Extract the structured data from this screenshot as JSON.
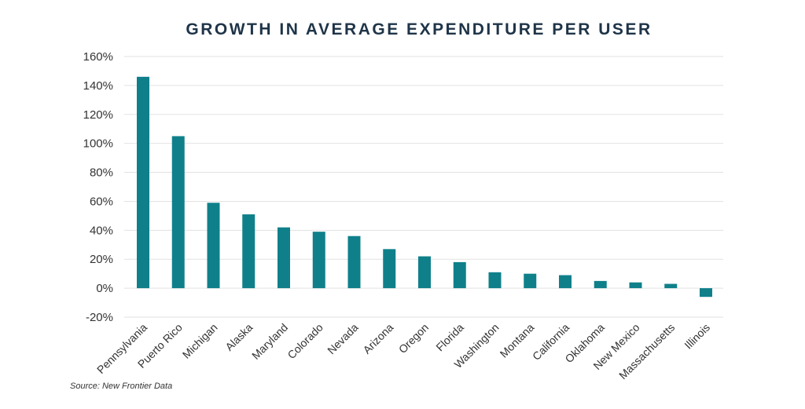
{
  "chart_data": {
    "type": "bar",
    "title": "GROWTH IN AVERAGE EXPENDITURE PER USER",
    "categories": [
      "Pennsylvania",
      "Puerto Rico",
      "Michigan",
      "Alaska",
      "Maryland",
      "Colorado",
      "Nevada",
      "Arizona",
      "Oregon",
      "Florida",
      "Washington",
      "Montana",
      "California",
      "Oklahoma",
      "New Mexico",
      "Massachusetts",
      "Illinois"
    ],
    "values": [
      146,
      105,
      59,
      51,
      42,
      39,
      36,
      27,
      22,
      18,
      11,
      10,
      9,
      5,
      4,
      3,
      -6
    ],
    "ylim": [
      -20,
      160
    ],
    "yticks": [
      -20,
      0,
      20,
      40,
      60,
      80,
      100,
      120,
      140,
      160
    ],
    "ytick_format": "%",
    "grid": true,
    "bar_color": "#0f808a",
    "source": "Source: New Frontier Data"
  }
}
